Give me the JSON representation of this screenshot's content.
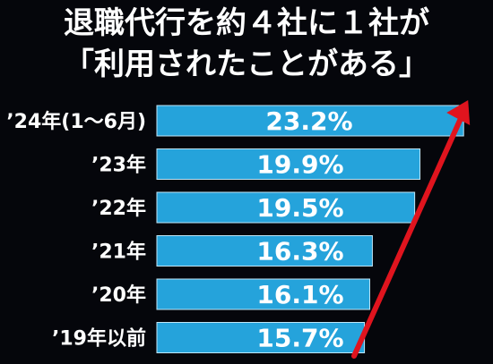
{
  "title_lines": [
    "退職代行を約４社に１社が",
    "「利用されたことがある」"
  ],
  "chart_data": {
    "type": "bar",
    "orientation": "horizontal",
    "categories": [
      "’24年(1〜6月)",
      "’23年",
      "’22年",
      "’21年",
      "’20年",
      "’19年以前"
    ],
    "values": [
      23.2,
      19.9,
      19.5,
      16.3,
      16.1,
      15.7
    ],
    "value_labels": [
      "23.2%",
      "19.9%",
      "19.5%",
      "16.3%",
      "16.1%",
      "15.7%"
    ],
    "xlim": [
      0,
      24
    ],
    "grid": false,
    "legend": "none",
    "annotation": "red upward arrow over the bar ends",
    "colors": {
      "background": "#05060b",
      "bar": "#25a3db",
      "bar_edge": "#bfe6f7",
      "label": "#ffffff",
      "category_text": "#ffffff",
      "arrow": "#e0141e"
    }
  }
}
